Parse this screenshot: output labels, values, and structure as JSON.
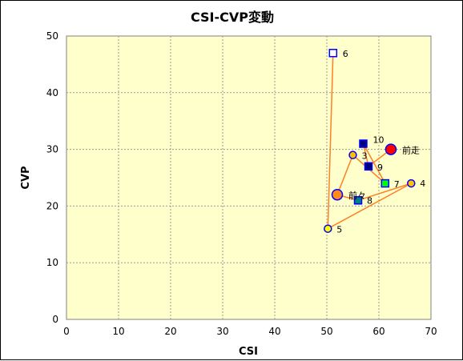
{
  "chart_data": {
    "type": "scatter",
    "title": "CSI-CVP変動",
    "xlabel": "CSI",
    "ylabel": "CVP",
    "xlim": [
      0,
      70
    ],
    "ylim": [
      0,
      50
    ],
    "xticks": [
      0,
      10,
      20,
      30,
      40,
      50,
      60,
      70
    ],
    "yticks": [
      0,
      10,
      20,
      30,
      40,
      50
    ],
    "grid": true,
    "plot_background": "#ffffcc",
    "line_color": "#ff7f27",
    "path_order": [
      "6",
      "5",
      "4",
      "8",
      "前々",
      "3",
      "7",
      "10",
      "9",
      "前走"
    ],
    "points": [
      {
        "label": "前走",
        "x": 62.3,
        "y": 30.0,
        "marker": "circle-large",
        "fill": "#ff0000",
        "stroke": "#0000ff"
      },
      {
        "label": "前々",
        "x": 52.0,
        "y": 22.0,
        "marker": "circle-large",
        "fill": "#ff8c1a",
        "stroke": "#0000ff"
      },
      {
        "label": "3",
        "x": 55.0,
        "y": 29.0,
        "marker": "circle",
        "fill": "#ffc000",
        "stroke": "#0000ff"
      },
      {
        "label": "4",
        "x": 66.2,
        "y": 24.0,
        "marker": "circle",
        "fill": "#ffc000",
        "stroke": "#0000ff"
      },
      {
        "label": "5",
        "x": 50.2,
        "y": 16.0,
        "marker": "circle",
        "fill": "#ffff00",
        "stroke": "#0000ff"
      },
      {
        "label": "6",
        "x": 51.2,
        "y": 47.0,
        "marker": "square",
        "fill": "#ffffff",
        "stroke": "#0000ff"
      },
      {
        "label": "7",
        "x": 61.2,
        "y": 24.0,
        "marker": "square",
        "fill": "#00ff00",
        "stroke": "#0000ff"
      },
      {
        "label": "8",
        "x": 56.0,
        "y": 21.0,
        "marker": "square",
        "fill": "#008080",
        "stroke": "#0000ff"
      },
      {
        "label": "9",
        "x": 58.0,
        "y": 27.0,
        "marker": "square",
        "fill": "#000080",
        "stroke": "#0000ff"
      },
      {
        "label": "10",
        "x": 57.0,
        "y": 31.0,
        "marker": "square",
        "fill": "#000080",
        "stroke": "#0000ff"
      }
    ]
  }
}
